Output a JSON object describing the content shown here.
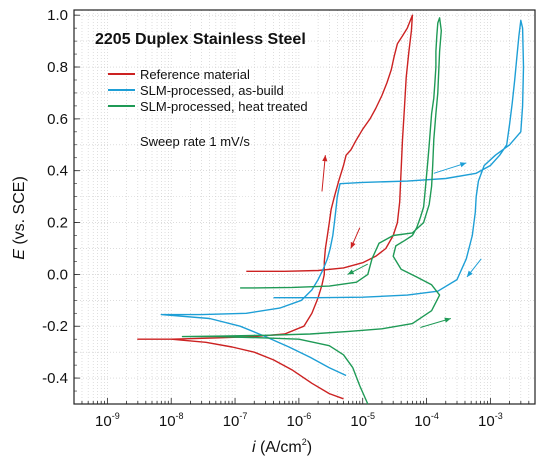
{
  "chart_data": {
    "type": "line",
    "title": "2205 Duplex Stainless Steel",
    "annotation": "Sweep rate 1 mV/s",
    "xlabel_var": "i",
    "xlabel_unit": " (A/cm",
    "xlabel_unit_sup": "2",
    "xlabel_unit_end": ")",
    "ylabel_var": "E",
    "ylabel_unit": " (vs. SCE)",
    "x_scale": "log",
    "xlim": [
      3e-10,
      0.005
    ],
    "ylim": [
      -0.5,
      1.02
    ],
    "x_ticks": [
      {
        "value": 1e-09,
        "base": "10",
        "exp": "-9"
      },
      {
        "value": 1e-08,
        "base": "10",
        "exp": "-8"
      },
      {
        "value": 1e-07,
        "base": "10",
        "exp": "-7"
      },
      {
        "value": 1e-06,
        "base": "10",
        "exp": "-6"
      },
      {
        "value": 1e-05,
        "base": "10",
        "exp": "-5"
      },
      {
        "value": 0.0001,
        "base": "10",
        "exp": "-4"
      },
      {
        "value": 0.001,
        "base": "10",
        "exp": "-3"
      }
    ],
    "y_ticks": [
      {
        "value": 1.0,
        "label": "1.0"
      },
      {
        "value": 0.8,
        "label": "0.8"
      },
      {
        "value": 0.6,
        "label": "0.6"
      },
      {
        "value": 0.4,
        "label": "0.4"
      },
      {
        "value": 0.2,
        "label": "0.2"
      },
      {
        "value": 0.0,
        "label": "0.0"
      },
      {
        "value": -0.2,
        "label": "-0.2"
      },
      {
        "value": -0.4,
        "label": "-0.4"
      }
    ],
    "grid": true,
    "legend_position": "top-left",
    "series": [
      {
        "name": "Reference material",
        "color": "#cc2222",
        "points": [
          [
            5e-06,
            -0.48
          ],
          [
            3e-06,
            -0.46
          ],
          [
            1.6e-06,
            -0.42
          ],
          [
            8e-07,
            -0.37
          ],
          [
            4e-07,
            -0.33
          ],
          [
            2e-07,
            -0.3
          ],
          [
            9e-08,
            -0.28
          ],
          [
            3.5e-08,
            -0.262
          ],
          [
            1e-08,
            -0.25
          ],
          [
            3e-09,
            -0.25
          ],
          [
            1e-08,
            -0.25
          ],
          [
            5e-08,
            -0.245
          ],
          [
            2e-07,
            -0.24
          ],
          [
            6e-07,
            -0.23
          ],
          [
            1.2e-06,
            -0.2
          ],
          [
            1.6e-06,
            -0.15
          ],
          [
            2e-06,
            -0.09
          ],
          [
            2.3e-06,
            -0.04
          ],
          [
            2.5e-06,
            0.0
          ],
          [
            2.5e-06,
            0.05
          ],
          [
            2.6e-06,
            0.1
          ],
          [
            2.8e-06,
            0.15
          ],
          [
            3e-06,
            0.2
          ],
          [
            3.2e-06,
            0.25
          ],
          [
            3.6e-06,
            0.3
          ],
          [
            4.2e-06,
            0.36
          ],
          [
            5e-06,
            0.42
          ],
          [
            5.5e-06,
            0.46
          ],
          [
            6.5e-06,
            0.48
          ],
          [
            8e-06,
            0.52
          ],
          [
            1e-05,
            0.56
          ],
          [
            1.3e-05,
            0.6
          ],
          [
            1.6e-05,
            0.64
          ],
          [
            2e-05,
            0.69
          ],
          [
            2.4e-05,
            0.74
          ],
          [
            2.8e-05,
            0.79
          ],
          [
            3.1e-05,
            0.84
          ],
          [
            3.5e-05,
            0.89
          ],
          [
            4.2e-05,
            0.92
          ],
          [
            5e-05,
            0.95
          ],
          [
            6e-05,
            1.0
          ],
          [
            5.8e-05,
            0.94
          ],
          [
            5.3e-05,
            0.86
          ],
          [
            4.8e-05,
            0.76
          ],
          [
            4.5e-05,
            0.64
          ],
          [
            4.2e-05,
            0.52
          ],
          [
            4e-05,
            0.4
          ],
          [
            3.8e-05,
            0.28
          ],
          [
            3.5e-05,
            0.2
          ],
          [
            3e-05,
            0.15
          ],
          [
            2.3e-05,
            0.1
          ],
          [
            1.6e-05,
            0.07
          ],
          [
            1e-05,
            0.045
          ],
          [
            5e-06,
            0.025
          ],
          [
            2e-06,
            0.015
          ],
          [
            6e-07,
            0.012
          ],
          [
            1.5e-07,
            0.012
          ]
        ]
      },
      {
        "name": "SLM-processed, as-build",
        "color": "#1e9fd6",
        "points": [
          [
            5.5e-06,
            -0.39
          ],
          [
            3e-06,
            -0.36
          ],
          [
            1.5e-06,
            -0.32
          ],
          [
            7e-07,
            -0.28
          ],
          [
            3e-07,
            -0.24
          ],
          [
            1.2e-07,
            -0.2
          ],
          [
            4e-08,
            -0.17
          ],
          [
            7e-09,
            -0.155
          ],
          [
            3e-08,
            -0.155
          ],
          [
            1.5e-07,
            -0.15
          ],
          [
            5e-07,
            -0.13
          ],
          [
            1.1e-06,
            -0.1
          ],
          [
            1.6e-06,
            -0.06
          ],
          [
            2e-06,
            -0.02
          ],
          [
            2.4e-06,
            0.02
          ],
          [
            2.8e-06,
            0.06
          ],
          [
            3.1e-06,
            0.1
          ],
          [
            3.4e-06,
            0.15
          ],
          [
            3.6e-06,
            0.2
          ],
          [
            3.8e-06,
            0.25
          ],
          [
            4e-06,
            0.3
          ],
          [
            4.4e-06,
            0.35
          ],
          [
            1e-05,
            0.355
          ],
          [
            5e-05,
            0.36
          ],
          [
            0.0002,
            0.37
          ],
          [
            0.0006,
            0.39
          ],
          [
            0.001,
            0.42
          ],
          [
            0.0014,
            0.46
          ],
          [
            0.0018,
            0.5
          ],
          [
            0.002,
            0.58
          ],
          [
            0.0022,
            0.66
          ],
          [
            0.0024,
            0.75
          ],
          [
            0.0026,
            0.84
          ],
          [
            0.0028,
            0.92
          ],
          [
            0.003,
            0.98
          ],
          [
            0.0032,
            0.95
          ],
          [
            0.0033,
            0.8
          ],
          [
            0.0032,
            0.65
          ],
          [
            0.003,
            0.55
          ],
          [
            0.002,
            0.5
          ],
          [
            0.0012,
            0.46
          ],
          [
            0.0008,
            0.42
          ],
          [
            0.00065,
            0.36
          ],
          [
            0.0006,
            0.3
          ],
          [
            0.00058,
            0.24
          ],
          [
            0.00052,
            0.15
          ],
          [
            0.00042,
            0.06
          ],
          [
            0.0003,
            -0.02
          ],
          [
            0.00015,
            -0.065
          ],
          [
            5e-05,
            -0.08
          ],
          [
            1e-05,
            -0.088
          ],
          [
            2e-06,
            -0.09
          ],
          [
            4e-07,
            -0.09
          ]
        ]
      },
      {
        "name": "SLM-processed, heat treated",
        "color": "#1f9a56",
        "points": [
          [
            1.2e-05,
            -0.5
          ],
          [
            9e-06,
            -0.43
          ],
          [
            7e-06,
            -0.36
          ],
          [
            5e-06,
            -0.31
          ],
          [
            3e-06,
            -0.275
          ],
          [
            1e-06,
            -0.25
          ],
          [
            3e-07,
            -0.245
          ],
          [
            5e-08,
            -0.24
          ],
          [
            1.5e-08,
            -0.24
          ],
          [
            6e-08,
            -0.238
          ],
          [
            3e-07,
            -0.235
          ],
          [
            1.5e-06,
            -0.23
          ],
          [
            6e-06,
            -0.22
          ],
          [
            2e-05,
            -0.21
          ],
          [
            6e-05,
            -0.19
          ],
          [
            0.00012,
            -0.14
          ],
          [
            0.00016,
            -0.08
          ],
          [
            0.00012,
            -0.04
          ],
          [
            7e-05,
            -0.01
          ],
          [
            4e-05,
            0.02
          ],
          [
            3e-05,
            0.07
          ],
          [
            3.3e-05,
            0.11
          ],
          [
            4.5e-05,
            0.13
          ],
          [
            6e-05,
            0.15
          ],
          [
            7e-05,
            0.18
          ],
          [
            8e-05,
            0.22
          ],
          [
            9e-05,
            0.26
          ],
          [
            9.5e-05,
            0.32
          ],
          [
            0.0001,
            0.38
          ],
          [
            0.000105,
            0.44
          ],
          [
            0.00011,
            0.5
          ],
          [
            0.000115,
            0.56
          ],
          [
            0.00012,
            0.62
          ],
          [
            0.00013,
            0.68
          ],
          [
            0.000135,
            0.74
          ],
          [
            0.00014,
            0.8
          ],
          [
            0.00014,
            0.86
          ],
          [
            0.000145,
            0.92
          ],
          [
            0.00015,
            0.97
          ],
          [
            0.00016,
            0.99
          ],
          [
            0.00017,
            0.94
          ],
          [
            0.00016,
            0.86
          ],
          [
            0.000155,
            0.78
          ],
          [
            0.00015,
            0.7
          ],
          [
            0.00014,
            0.62
          ],
          [
            0.00013,
            0.52
          ],
          [
            0.000125,
            0.42
          ],
          [
            0.00012,
            0.34
          ],
          [
            0.00011,
            0.27
          ],
          [
            9e-05,
            0.2
          ],
          [
            6e-05,
            0.16
          ],
          [
            3e-05,
            0.15
          ],
          [
            1.8e-05,
            0.12
          ],
          [
            1.4e-05,
            0.06
          ],
          [
            1.2e-05,
            0.0
          ],
          [
            8e-06,
            -0.03
          ],
          [
            3e-06,
            -0.045
          ],
          [
            8e-07,
            -0.05
          ],
          [
            2e-07,
            -0.052
          ],
          [
            1.2e-07,
            -0.052
          ]
        ]
      }
    ],
    "arrows": [
      {
        "color": "#cc2222",
        "from": [
          2.3e-06,
          0.32
        ],
        "to": [
          2.6e-06,
          0.46
        ]
      },
      {
        "color": "#cc2222",
        "from": [
          9e-06,
          0.18
        ],
        "to": [
          6.5e-06,
          0.1
        ]
      },
      {
        "color": "#1e9fd6",
        "from": [
          0.00013,
          0.39
        ],
        "to": [
          0.00042,
          0.43
        ]
      },
      {
        "color": "#1e9fd6",
        "from": [
          0.00072,
          0.06
        ],
        "to": [
          0.00043,
          -0.01
        ]
      },
      {
        "color": "#1f9a56",
        "from": [
          1.2e-05,
          0.04
        ],
        "to": [
          5.8e-06,
          -0.0
        ]
      },
      {
        "color": "#1f9a56",
        "from": [
          8e-05,
          -0.205
        ],
        "to": [
          0.00024,
          -0.17
        ]
      }
    ]
  }
}
